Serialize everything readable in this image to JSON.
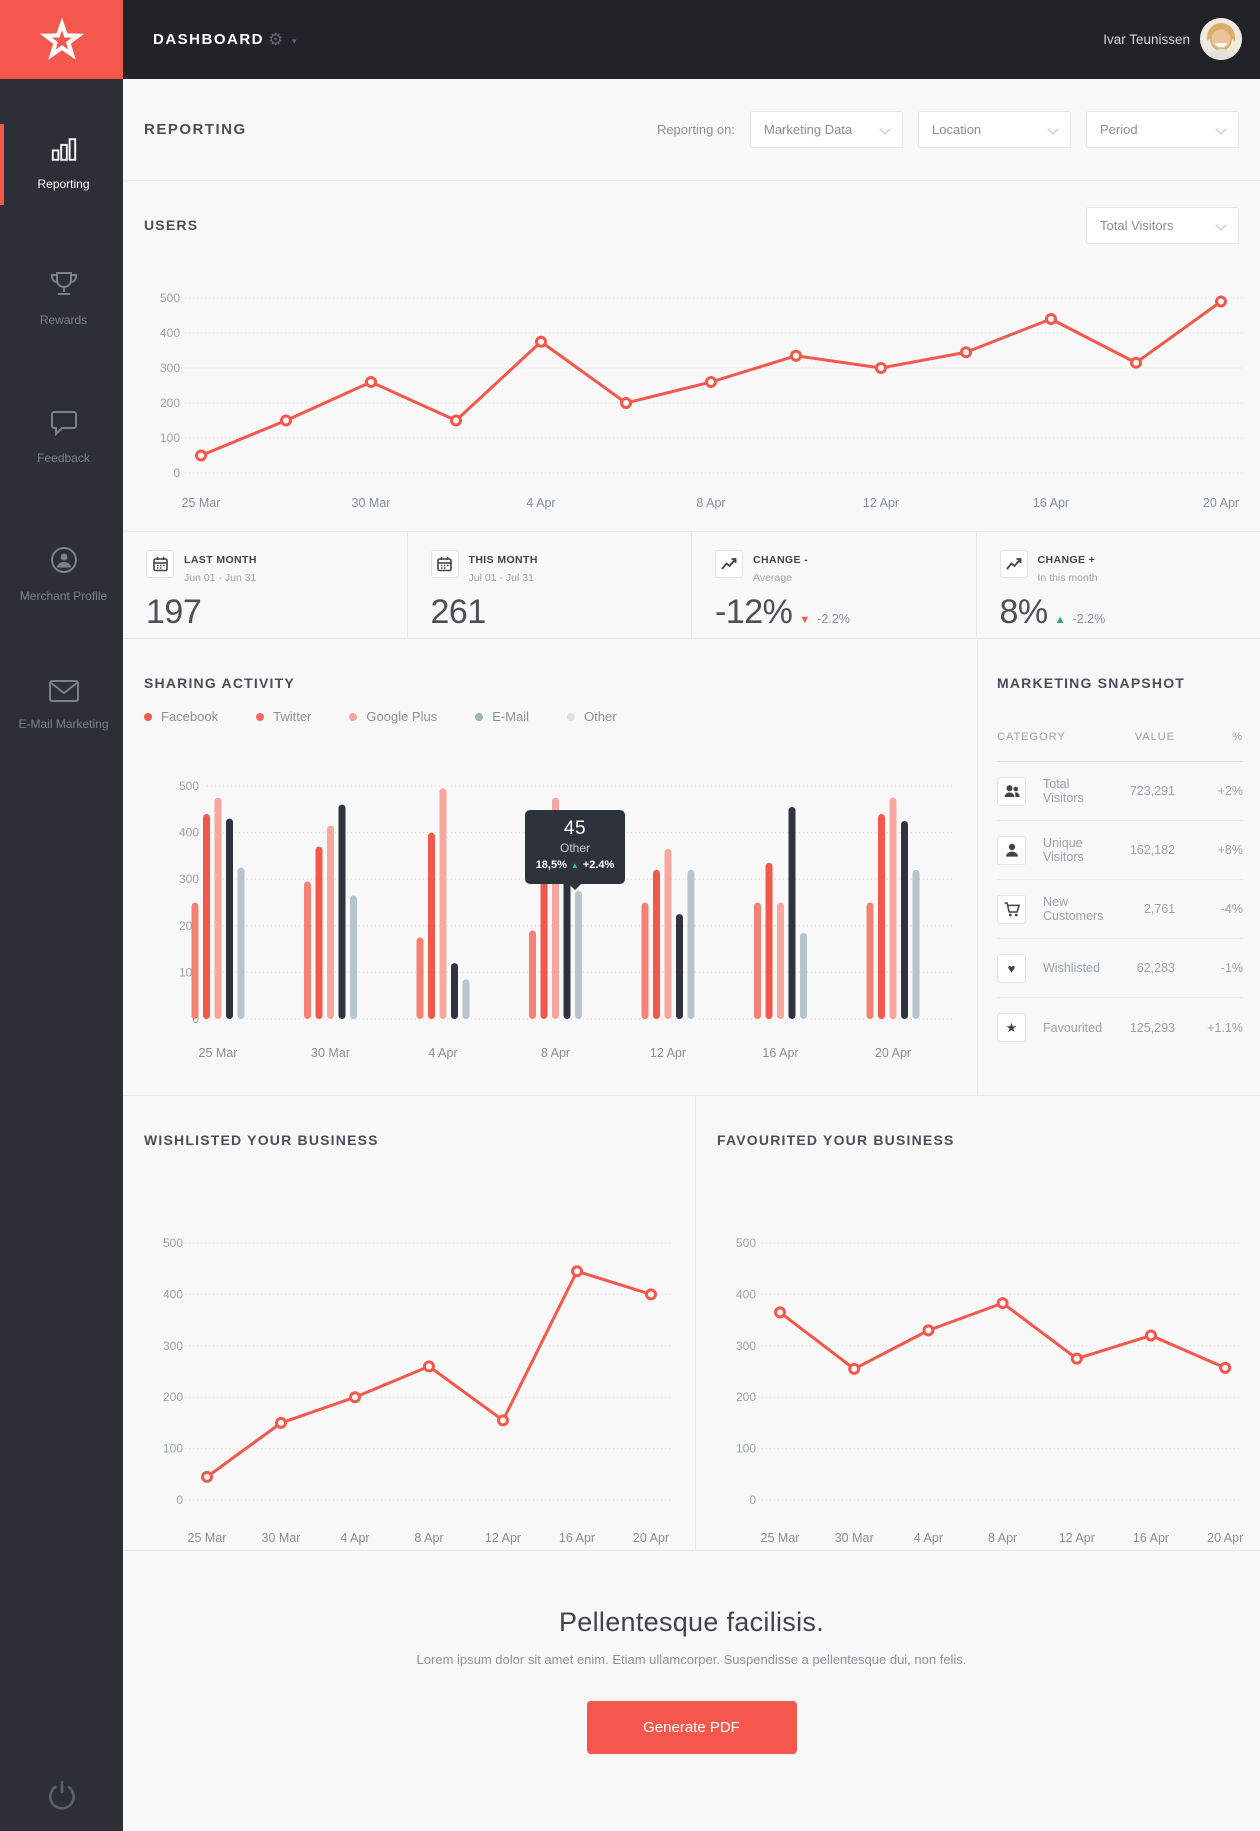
{
  "topbar": {
    "title": "DASHBOARD",
    "user_name": "Ivar Teunissen"
  },
  "sidebar": {
    "items": [
      {
        "label": "Reporting",
        "icon": "bar-chart-icon",
        "active": true
      },
      {
        "label": "Rewards",
        "icon": "trophy-icon",
        "active": false
      },
      {
        "label": "Feedback",
        "icon": "speech-bubble-icon",
        "active": false
      },
      {
        "label": "Merchant Profile",
        "icon": "person-circle-icon",
        "active": false
      },
      {
        "label": "E-Mail Marketing",
        "icon": "envelope-icon",
        "active": false
      }
    ],
    "power_icon": "power-icon"
  },
  "page_header": {
    "title": "REPORTING",
    "filter_label": "Reporting on:",
    "filters": [
      {
        "value": "Marketing Data"
      },
      {
        "value": "Location"
      },
      {
        "value": "Period"
      }
    ]
  },
  "users_section": {
    "title": "USERS",
    "dropdown_value": "Total Visitors"
  },
  "stats": [
    {
      "icon": "calendar-icon",
      "title": "LAST MONTH",
      "subtitle": "Jun 01 - Jun 31",
      "value": "197",
      "arrow": "",
      "arrow_color": "",
      "delta": ""
    },
    {
      "icon": "calendar-icon",
      "title": "THIS MONTH",
      "subtitle": "Jul 01 - Jul 31",
      "value": "261",
      "arrow": "",
      "arrow_color": "",
      "delta": ""
    },
    {
      "icon": "trend-icon",
      "title": "CHANGE -",
      "subtitle": "Average",
      "value": "-12%",
      "arrow": "▼",
      "arrow_color": "#f4584c",
      "delta": "-2.2%"
    },
    {
      "icon": "trend-icon",
      "title": "CHANGE +",
      "subtitle": "In this month",
      "value": "8%",
      "arrow": "▲",
      "arrow_color": "#27ae60",
      "delta": "-2.2%"
    }
  ],
  "sharing": {
    "title": "SHARING ACTIVITY",
    "tooltip": {
      "value": "45",
      "label": "Other",
      "pct": "18,5%",
      "arrow": "▲",
      "arrow_color": "#2ecc71",
      "delta": "+2.4%"
    }
  },
  "snapshot": {
    "title": "MARKETING SNAPSHOT",
    "columns": [
      "CATEGORY",
      "VALUE",
      "%"
    ],
    "rows": [
      {
        "icon": "visitors-icon",
        "category": "Total Visitors",
        "value": "723,291",
        "pct": "+2%"
      },
      {
        "icon": "user-icon",
        "category": "Unique Visitors",
        "value": "162,182",
        "pct": "+8%"
      },
      {
        "icon": "cart-icon",
        "category": "New Customers",
        "value": "2,761",
        "pct": "-4%"
      },
      {
        "icon": "heart-icon",
        "category": "Wishlisted",
        "value": "62,283",
        "pct": "-1%"
      },
      {
        "icon": "star-icon",
        "category": "Favourited",
        "value": "125,293",
        "pct": "+1.1%"
      }
    ]
  },
  "footer": {
    "heading": "Pellentesque facilisis.",
    "body": "Lorem ipsum dolor sit amet enim. Etiam ullamcorper. Suspendisse a pellentesque dui, non felis.",
    "button_label": "Generate PDF"
  },
  "chart_data": [
    {
      "id": "users",
      "type": "line",
      "title": "USERS",
      "categories": [
        "25 Mar",
        "30 Mar",
        "4 Apr",
        "8 Apr",
        "12 Apr",
        "16 Apr",
        "20 Apr"
      ],
      "label_every": 2,
      "values": [
        50,
        150,
        260,
        150,
        375,
        200,
        260,
        335,
        300,
        345,
        440,
        315,
        490
      ],
      "ylim": [
        0,
        500
      ],
      "yticks": [
        0,
        100,
        200,
        300,
        400,
        500
      ],
      "grid": "dotted",
      "color": "#f4584c"
    },
    {
      "id": "sharing",
      "type": "bar",
      "title": "SHARING ACTIVITY",
      "categories": [
        "25 Mar",
        "30 Mar",
        "4 Apr",
        "8 Apr",
        "12 Apr",
        "16 Apr",
        "20 Apr"
      ],
      "series": [
        {
          "name": "Facebook",
          "color": "#f58175",
          "legend_color": "#f4584c",
          "values": [
            250,
            295,
            175,
            190,
            250,
            250,
            250
          ]
        },
        {
          "name": "Twitter",
          "color": "#f4584c",
          "legend_color": "#f5695e",
          "values": [
            440,
            370,
            400,
            305,
            320,
            335,
            440
          ]
        },
        {
          "name": "Google Plus",
          "color": "#f8a79f",
          "legend_color": "#f8a79f",
          "values": [
            475,
            415,
            495,
            475,
            365,
            250,
            475
          ]
        },
        {
          "name": "E-Mail",
          "color": "#2e333e",
          "legend_color": "#9db3bd",
          "values": [
            430,
            460,
            120,
            300,
            225,
            455,
            425
          ]
        },
        {
          "name": "Other",
          "color": "#b6c4cb",
          "legend_color": "#dde2e5",
          "values": [
            325,
            265,
            85,
            275,
            320,
            185,
            320
          ]
        }
      ],
      "ylim": [
        0,
        500
      ],
      "yticks": [
        0,
        100,
        200,
        300,
        400,
        500
      ],
      "grid": "dotted",
      "legend_position": "top-left"
    },
    {
      "id": "wishlisted",
      "type": "line",
      "title": "WISHLISTED YOUR BUSINESS",
      "categories": [
        "25 Mar",
        "30 Mar",
        "4 Apr",
        "8 Apr",
        "12 Apr",
        "16 Apr",
        "20 Apr"
      ],
      "label_every": 1,
      "values": [
        45,
        150,
        200,
        260,
        155,
        445,
        400
      ],
      "ylim": [
        0,
        500
      ],
      "yticks": [
        0,
        100,
        200,
        300,
        400,
        500
      ],
      "grid": "dotted",
      "color": "#f4584c"
    },
    {
      "id": "favourited",
      "type": "line",
      "title": "FAVOURITED YOUR BUSINESS",
      "categories": [
        "25 Mar",
        "30 Mar",
        "4 Apr",
        "8 Apr",
        "12 Apr",
        "16 Apr",
        "20 Apr"
      ],
      "label_every": 1,
      "values": [
        365,
        255,
        330,
        383,
        275,
        320,
        257
      ],
      "ylim": [
        0,
        500
      ],
      "yticks": [
        0,
        100,
        200,
        300,
        400,
        500
      ],
      "grid": "dotted",
      "color": "#f4584c"
    }
  ]
}
